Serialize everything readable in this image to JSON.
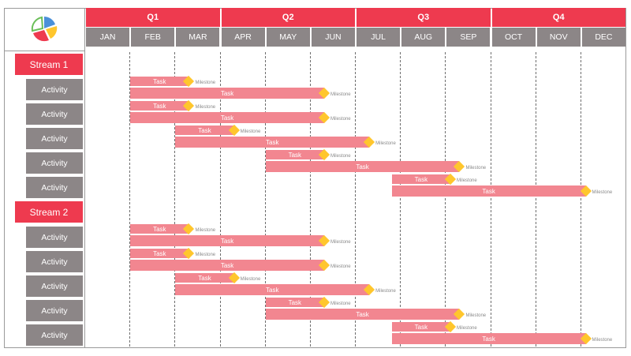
{
  "quarters": [
    "Q1",
    "Q2",
    "Q3",
    "Q4"
  ],
  "months": [
    "JAN",
    "FEB",
    "MAR",
    "APR",
    "MAY",
    "JUN",
    "JUL",
    "AUG",
    "SEP",
    "OCT",
    "NOV",
    "DEC"
  ],
  "colors": {
    "header": "#ee3a4f",
    "month_bg": "#8c8687",
    "bar": "#f28690",
    "milestone": "#ffc62d"
  },
  "logo": {
    "name": "pie-logo-icon"
  },
  "streams": [
    {
      "label": "Stream 1",
      "activities": [
        {
          "label": "Activity",
          "bars": [
            {
              "label": "Task",
              "start": 1,
              "end": 2.3,
              "milestone": "Milestone"
            },
            {
              "label": "Task",
              "start": 1,
              "end": 5.3,
              "milestone": "Milestone"
            }
          ]
        },
        {
          "label": "Activity",
          "bars": [
            {
              "label": "Task",
              "start": 1,
              "end": 2.3,
              "milestone": "Milestone"
            },
            {
              "label": "Task",
              "start": 1,
              "end": 5.3,
              "milestone": "Milestone"
            }
          ]
        },
        {
          "label": "Activity",
          "bars": [
            {
              "label": "Task",
              "start": 2,
              "end": 3.3,
              "milestone": "Milestone"
            },
            {
              "label": "Task",
              "start": 2,
              "end": 6.3,
              "milestone": "Milestone"
            }
          ]
        },
        {
          "label": "Activity",
          "bars": [
            {
              "label": "Task",
              "start": 4,
              "end": 5.3,
              "milestone": "Milestone"
            },
            {
              "label": "Task",
              "start": 4,
              "end": 8.3,
              "milestone": "Milestone"
            }
          ]
        },
        {
          "label": "Activity",
          "bars": [
            {
              "label": "Task",
              "start": 6.8,
              "end": 8.1,
              "milestone": "Milestone"
            },
            {
              "label": "Task",
              "start": 6.8,
              "end": 11.1,
              "milestone": "Milestone"
            }
          ]
        }
      ]
    },
    {
      "label": "Stream 2",
      "activities": [
        {
          "label": "Activity",
          "bars": [
            {
              "label": "Task",
              "start": 1,
              "end": 2.3,
              "milestone": "Milestone"
            },
            {
              "label": "Task",
              "start": 1,
              "end": 5.3,
              "milestone": "Milestone"
            }
          ]
        },
        {
          "label": "Activity",
          "bars": [
            {
              "label": "Task",
              "start": 1,
              "end": 2.3,
              "milestone": "Milestone"
            },
            {
              "label": "Task",
              "start": 1,
              "end": 5.3,
              "milestone": "Milestone"
            }
          ]
        },
        {
          "label": "Activity",
          "bars": [
            {
              "label": "Task",
              "start": 2,
              "end": 3.3,
              "milestone": "Milestone"
            },
            {
              "label": "Task",
              "start": 2,
              "end": 6.3,
              "milestone": "Milestone"
            }
          ]
        },
        {
          "label": "Activity",
          "bars": [
            {
              "label": "Task",
              "start": 4,
              "end": 5.3,
              "milestone": "Milestone"
            },
            {
              "label": "Task",
              "start": 4,
              "end": 8.3,
              "milestone": "Milestone"
            }
          ]
        },
        {
          "label": "Activity",
          "bars": [
            {
              "label": "Task",
              "start": 6.8,
              "end": 8.1,
              "milestone": "Milestone"
            },
            {
              "label": "Task",
              "start": 6.8,
              "end": 11.1,
              "milestone": "Milestone"
            }
          ]
        }
      ]
    }
  ]
}
